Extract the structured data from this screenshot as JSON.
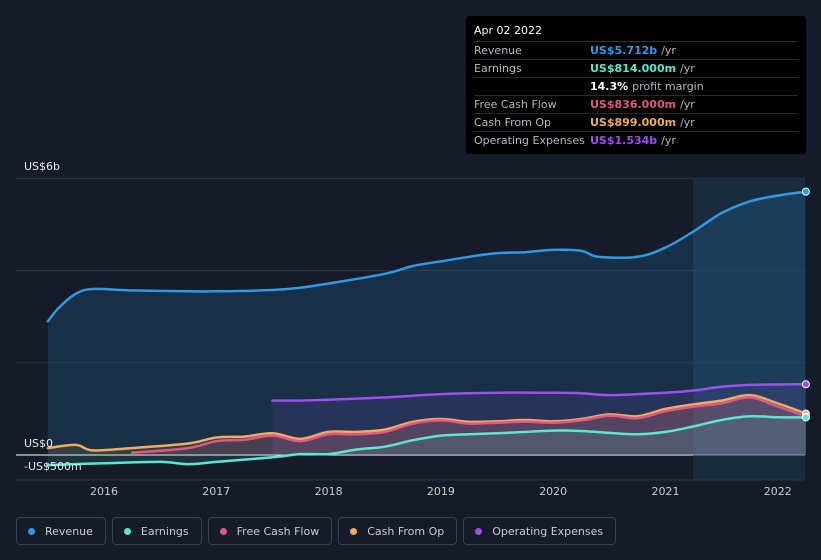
{
  "tooltip": {
    "date": "Apr 02 2022",
    "rows": [
      {
        "label": "Revenue",
        "value": "US$5.712b",
        "unit": "/yr",
        "color": "#2e9ae6"
      },
      {
        "label": "Earnings",
        "value": "US$814.000m",
        "unit": "/yr",
        "color": "#59e8cf"
      },
      {
        "label": "",
        "value": "14.3%",
        "unit": "profit margin",
        "color": "#ffffff"
      },
      {
        "label": "Free Cash Flow",
        "value": "US$836.000m",
        "unit": "/yr",
        "color": "#e0578a"
      },
      {
        "label": "Cash From Op",
        "value": "US$899.000m",
        "unit": "/yr",
        "color": "#f0ad5c"
      },
      {
        "label": "Operating Expenses",
        "value": "US$1.534b",
        "unit": "/yr",
        "color": "#9d4ff0"
      }
    ]
  },
  "legend": [
    {
      "label": "Revenue",
      "color": "#2e9ae6"
    },
    {
      "label": "Earnings",
      "color": "#59e8cf"
    },
    {
      "label": "Free Cash Flow",
      "color": "#e0578a"
    },
    {
      "label": "Cash From Op",
      "color": "#f0ad5c"
    },
    {
      "label": "Operating Expenses",
      "color": "#9d4ff0"
    }
  ],
  "chart_data": {
    "type": "line",
    "y_tick_labels": [
      "US$6b",
      "US$0",
      "-US$500m"
    ],
    "x_tick_labels": [
      "2016",
      "2017",
      "2018",
      "2019",
      "2020",
      "2021",
      "2022"
    ],
    "ylim": [
      -0.5,
      6
    ],
    "grid": true,
    "legend_position": "bottom",
    "series": [
      {
        "name": "Revenue",
        "color": "#2e9ae6",
        "x": [
          2015.5,
          2015.6,
          2015.75,
          2015.9,
          2016.25,
          2016.75,
          2017.0,
          2017.5,
          2017.75,
          2018.0,
          2018.5,
          2018.75,
          2019.0,
          2019.25,
          2019.5,
          2019.75,
          2020.0,
          2020.25,
          2020.4,
          2020.75,
          2021.0,
          2021.25,
          2021.5,
          2021.75,
          2022.0,
          2022.25
        ],
        "y": [
          2.9,
          3.2,
          3.5,
          3.6,
          3.57,
          3.55,
          3.55,
          3.58,
          3.63,
          3.72,
          3.93,
          4.1,
          4.2,
          4.3,
          4.38,
          4.4,
          4.45,
          4.43,
          4.3,
          4.3,
          4.5,
          4.85,
          5.25,
          5.5,
          5.63,
          5.712
        ]
      },
      {
        "name": "Earnings",
        "color": "#59e8cf",
        "x": [
          2015.5,
          2016.0,
          2016.5,
          2016.75,
          2017.0,
          2017.5,
          2017.75,
          2018.0,
          2018.25,
          2018.5,
          2018.75,
          2019.0,
          2019.25,
          2019.5,
          2019.75,
          2020.0,
          2020.25,
          2020.5,
          2020.75,
          2021.0,
          2021.25,
          2021.5,
          2021.75,
          2022.0,
          2022.25
        ],
        "y": [
          -0.22,
          -0.18,
          -0.15,
          -0.2,
          -0.15,
          -0.05,
          0.02,
          0.02,
          0.12,
          0.18,
          0.32,
          0.42,
          0.45,
          0.47,
          0.5,
          0.53,
          0.52,
          0.48,
          0.45,
          0.5,
          0.62,
          0.76,
          0.84,
          0.82,
          0.814
        ]
      },
      {
        "name": "Free Cash Flow",
        "color": "#e0578a",
        "x": [
          2016.25,
          2016.75,
          2017.0,
          2017.25,
          2017.5,
          2017.75,
          2018.0,
          2018.25,
          2018.5,
          2018.75,
          2019.0,
          2019.25,
          2019.5,
          2019.75,
          2020.0,
          2020.25,
          2020.5,
          2020.75,
          2021.0,
          2021.25,
          2021.5,
          2021.75,
          2022.0,
          2022.25
        ],
        "y": [
          0.05,
          0.15,
          0.3,
          0.33,
          0.42,
          0.3,
          0.45,
          0.45,
          0.5,
          0.68,
          0.75,
          0.68,
          0.7,
          0.72,
          0.7,
          0.75,
          0.85,
          0.8,
          0.95,
          1.05,
          1.12,
          1.25,
          1.05,
          0.836
        ]
      },
      {
        "name": "Cash From Op",
        "color": "#f0ad5c",
        "x": [
          2015.5,
          2015.75,
          2015.9,
          2016.25,
          2016.75,
          2017.0,
          2017.25,
          2017.5,
          2017.75,
          2018.0,
          2018.25,
          2018.5,
          2018.75,
          2019.0,
          2019.25,
          2019.5,
          2019.75,
          2020.0,
          2020.25,
          2020.5,
          2020.75,
          2021.0,
          2021.25,
          2021.5,
          2021.75,
          2022.0,
          2022.25
        ],
        "y": [
          0.15,
          0.22,
          0.1,
          0.15,
          0.25,
          0.38,
          0.4,
          0.47,
          0.35,
          0.5,
          0.5,
          0.55,
          0.72,
          0.78,
          0.72,
          0.73,
          0.76,
          0.73,
          0.78,
          0.88,
          0.84,
          1.0,
          1.1,
          1.18,
          1.3,
          1.12,
          0.899
        ]
      },
      {
        "name": "Operating Expenses",
        "color": "#9d4ff0",
        "x": [
          2017.5,
          2017.75,
          2018.0,
          2018.5,
          2019.0,
          2019.5,
          2020.0,
          2020.25,
          2020.5,
          2021.0,
          2021.25,
          2021.5,
          2021.75,
          2022.0,
          2022.25
        ],
        "y": [
          1.18,
          1.18,
          1.2,
          1.25,
          1.32,
          1.35,
          1.35,
          1.34,
          1.3,
          1.35,
          1.4,
          1.48,
          1.52,
          1.53,
          1.534
        ]
      }
    ]
  }
}
